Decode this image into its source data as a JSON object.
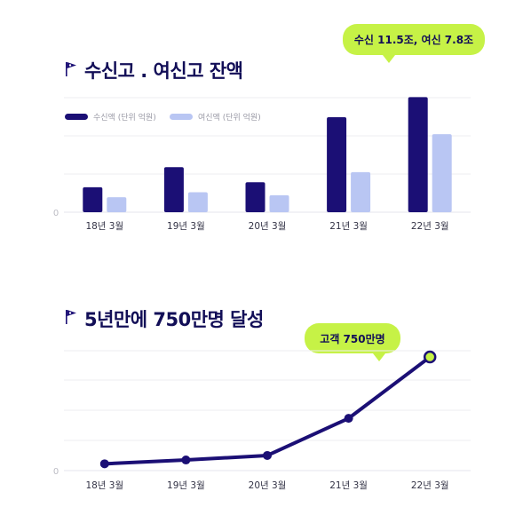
{
  "chart_data": [
    {
      "type": "bar",
      "title": "수신고 . 여신고 잔액",
      "categories": [
        "18년 3월",
        "19년 3월",
        "20년 3월",
        "21년 3월",
        "22년 3월"
      ],
      "series": [
        {
          "name": "수신액 (단위 억원)",
          "color": "#1b0f75",
          "values": [
            2.5,
            4.5,
            3.0,
            9.5,
            11.5
          ]
        },
        {
          "name": "여신액 (단위 억원)",
          "color": "#b9c6f3",
          "values": [
            1.5,
            2.0,
            1.7,
            4.0,
            7.8
          ]
        }
      ],
      "ylim": [
        0,
        15
      ],
      "y_tick_labels": [
        "0"
      ],
      "grid": true,
      "legend": "top-left",
      "callout": "수신 11.5조, 여신 7.8조"
    },
    {
      "type": "line",
      "title": "5년만에 750만명 달성",
      "categories": [
        "18년 3월",
        "19년 3월",
        "20년 3월",
        "21년 3월",
        "22년 3월"
      ],
      "series": [
        {
          "color": "#1b0f75",
          "values": [
            45,
            70,
            100,
            345,
            750
          ]
        }
      ],
      "ylim": [
        0,
        850
      ],
      "y_tick_labels": [
        "0"
      ],
      "grid": true,
      "highlight_color": "#c6f246",
      "callout": "고객 750만명"
    }
  ]
}
